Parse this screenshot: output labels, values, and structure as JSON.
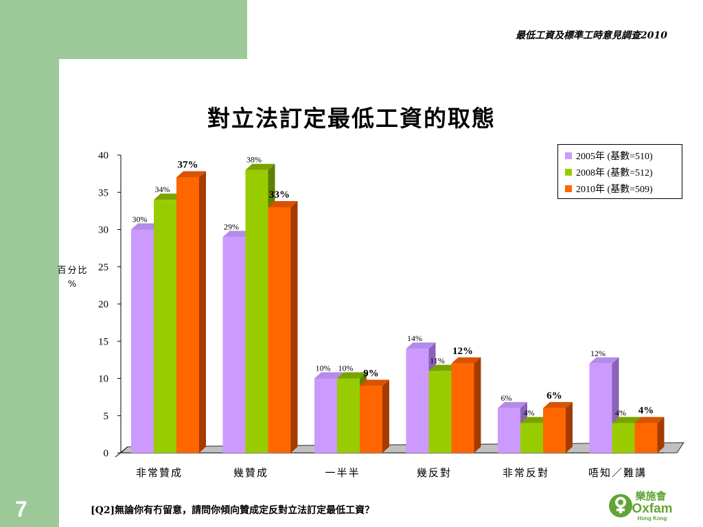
{
  "slide": {
    "header_title": "最低工資及標準工時意見調查2010",
    "slide_number": "7",
    "footnote": "[Q2]無論你有冇留意，請問你傾向贊成定反對立法訂定最低工資？",
    "logo": {
      "chinese": "樂施會",
      "english": "Oxfam",
      "sub": "Hong Kong",
      "color": "#61a534"
    }
  },
  "chart_data": {
    "type": "bar",
    "title": "對立法訂定最低工資的取態",
    "ylabel": "百分比%",
    "ylabel_lines": [
      "百分比",
      "%"
    ],
    "ylim": [
      0,
      40
    ],
    "yticks": [
      0,
      5,
      10,
      15,
      20,
      25,
      30,
      35,
      40
    ],
    "categories": [
      "非常贊成",
      "幾贊成",
      "一半半",
      "幾反對",
      "非常反對",
      "唔知／難講"
    ],
    "series": [
      {
        "name": "2005年 (基數=510)",
        "color": "#cc99ff",
        "side": "#8a62b8",
        "top": "#b38be8",
        "values": [
          30,
          29,
          10,
          14,
          6,
          12
        ],
        "labels": [
          "30%",
          "29%",
          "10%",
          "14%",
          "6%",
          "12%"
        ],
        "bold": false
      },
      {
        "name": "2008年 (基數=512)",
        "color": "#99cc00",
        "side": "#5e8000",
        "top": "#7aa300",
        "values": [
          34,
          38,
          10,
          11,
          4,
          4
        ],
        "labels": [
          "34%",
          "38%",
          "10%",
          "11%",
          "4%",
          "4%"
        ],
        "bold": false
      },
      {
        "name": "2010年 (基數=509)",
        "color": "#ff6600",
        "side": "#a33c00",
        "top": "#d85200",
        "values": [
          37,
          33,
          9,
          12,
          6,
          4
        ],
        "labels": [
          "37%",
          "33%",
          "9%",
          "12%",
          "6%",
          "4%"
        ],
        "bold": true
      }
    ],
    "grid": false,
    "legend_position": "top-right"
  }
}
